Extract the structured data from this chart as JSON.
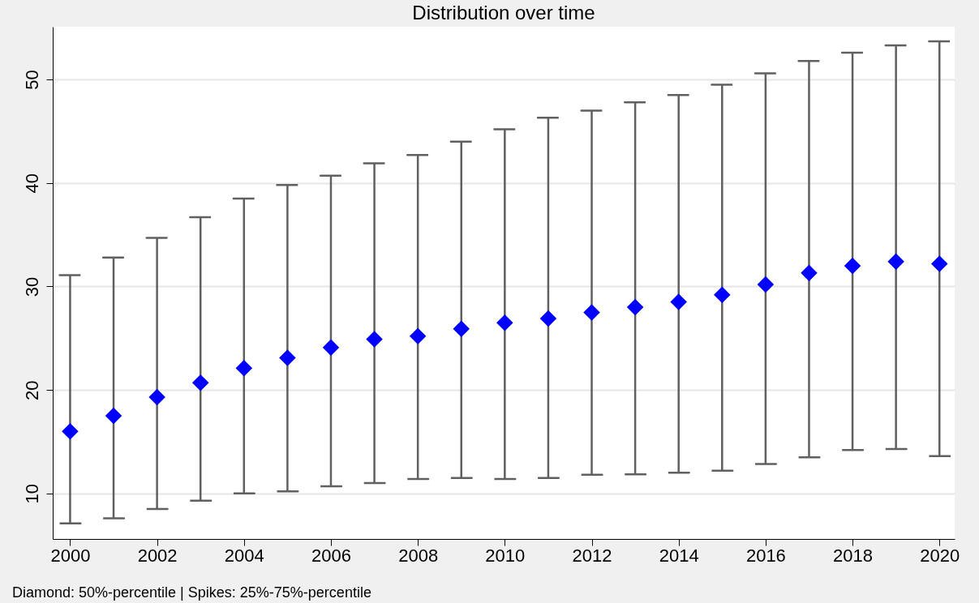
{
  "chart_data": {
    "type": "scatter",
    "title": "Distribution over time",
    "x": [
      2000,
      2001,
      2002,
      2003,
      2004,
      2005,
      2006,
      2007,
      2008,
      2009,
      2010,
      2011,
      2012,
      2013,
      2014,
      2015,
      2016,
      2017,
      2018,
      2019,
      2020
    ],
    "values": [
      16.0,
      17.5,
      19.3,
      20.7,
      22.1,
      23.1,
      24.1,
      24.9,
      25.2,
      25.9,
      26.5,
      26.9,
      27.5,
      28.0,
      28.5,
      29.2,
      30.2,
      31.3,
      32.0,
      32.4,
      32.2
    ],
    "errors": [
      [
        7.1,
        31.1
      ],
      [
        7.6,
        32.8
      ],
      [
        8.5,
        34.7
      ],
      [
        9.3,
        36.7
      ],
      [
        10.0,
        38.5
      ],
      [
        10.2,
        39.8
      ],
      [
        10.7,
        40.7
      ],
      [
        11.0,
        41.9
      ],
      [
        11.4,
        42.7
      ],
      [
        11.5,
        44.0
      ],
      [
        11.4,
        45.2
      ],
      [
        11.5,
        46.3
      ],
      [
        11.8,
        47.0
      ],
      [
        11.85,
        47.8
      ],
      [
        12.0,
        48.5
      ],
      [
        12.2,
        49.5
      ],
      [
        12.85,
        50.6
      ],
      [
        13.5,
        51.8
      ],
      [
        14.2,
        52.6
      ],
      [
        14.3,
        53.3
      ],
      [
        13.6,
        53.7
      ]
    ],
    "color": "#0000ff",
    "marker": "diamond",
    "xlim": [
      1999.6,
      2020.35
    ],
    "xticks": [
      2000,
      2002,
      2004,
      2006,
      2008,
      2010,
      2012,
      2014,
      2016,
      2018,
      2020
    ],
    "ylim": [
      5.6,
      55.1
    ],
    "yticks": [
      10,
      20,
      30,
      40,
      50
    ],
    "grid": "y",
    "annotations": [
      "Diamond: 50%-percentile | Spikes: 25%-75%-percentile"
    ]
  }
}
